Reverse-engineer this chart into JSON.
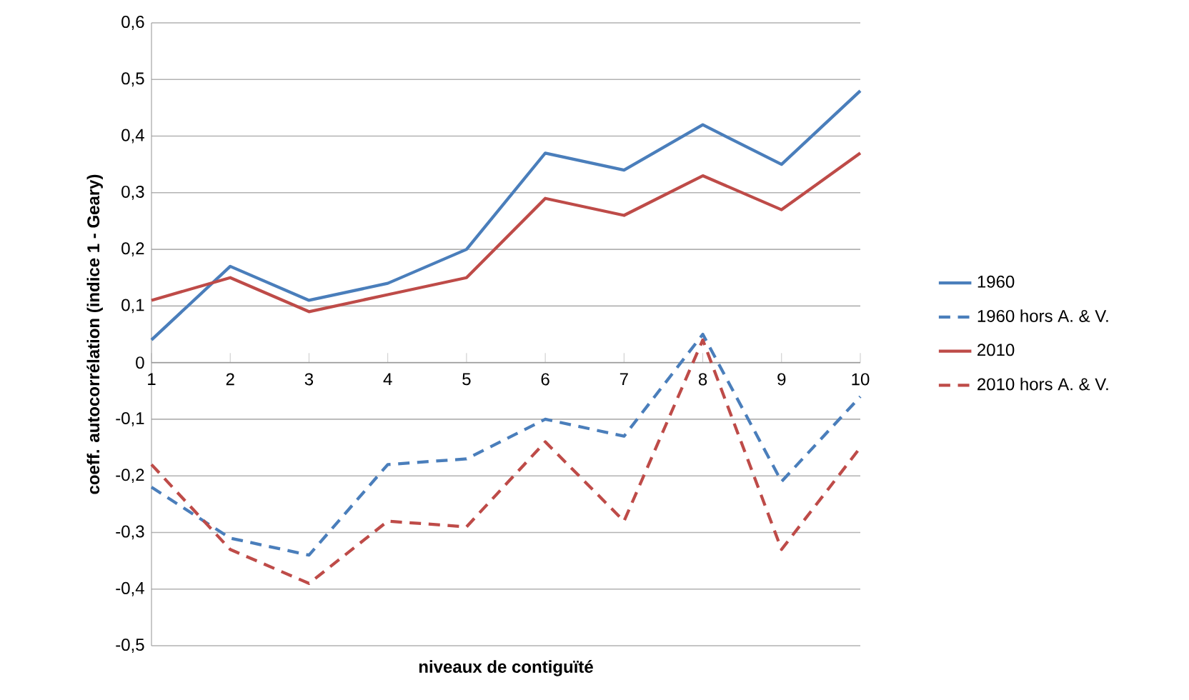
{
  "chart_data": {
    "type": "line",
    "xlabel": "niveaux de contiguïté",
    "ylabel": "coeff. autocorrélation (indice 1 - Geary)",
    "categories": [
      "1",
      "2",
      "3",
      "4",
      "5",
      "6",
      "7",
      "8",
      "9",
      "10"
    ],
    "series": [
      {
        "name": "1960",
        "color": "#4a7ebb",
        "line_style": "solid",
        "values": [
          0.04,
          0.17,
          0.11,
          0.14,
          0.2,
          0.37,
          0.34,
          0.42,
          0.35,
          0.48
        ]
      },
      {
        "name": "1960 hors A. & V.",
        "color": "#4a7ebb",
        "line_style": "dashed",
        "values": [
          -0.22,
          -0.31,
          -0.34,
          -0.18,
          -0.17,
          -0.1,
          -0.13,
          0.05,
          -0.21,
          -0.06
        ]
      },
      {
        "name": "2010",
        "color": "#be4b48",
        "line_style": "solid",
        "values": [
          0.11,
          0.15,
          0.09,
          0.12,
          0.15,
          0.29,
          0.26,
          0.33,
          0.27,
          0.37
        ]
      },
      {
        "name": "2010 hors A. & V.",
        "color": "#be4b48",
        "line_style": "dashed",
        "values": [
          -0.18,
          -0.33,
          -0.39,
          -0.28,
          -0.29,
          -0.14,
          -0.28,
          0.04,
          -0.33,
          -0.15
        ]
      }
    ],
    "ylim": [
      -0.5,
      0.6
    ],
    "yticks": [
      {
        "value": -0.5,
        "label": "-0,5"
      },
      {
        "value": -0.4,
        "label": "-0,4"
      },
      {
        "value": -0.3,
        "label": "-0,3"
      },
      {
        "value": -0.2,
        "label": "-0,2"
      },
      {
        "value": -0.1,
        "label": "-0,1"
      },
      {
        "value": 0,
        "label": "0"
      },
      {
        "value": 0.1,
        "label": "0,1"
      },
      {
        "value": 0.2,
        "label": "0,2"
      },
      {
        "value": 0.3,
        "label": "0,3"
      },
      {
        "value": 0.4,
        "label": "0,4"
      },
      {
        "value": 0.5,
        "label": "0,5"
      },
      {
        "value": 0.6,
        "label": "0,6"
      }
    ],
    "grid": "y",
    "legend": "right",
    "marker": "none"
  }
}
